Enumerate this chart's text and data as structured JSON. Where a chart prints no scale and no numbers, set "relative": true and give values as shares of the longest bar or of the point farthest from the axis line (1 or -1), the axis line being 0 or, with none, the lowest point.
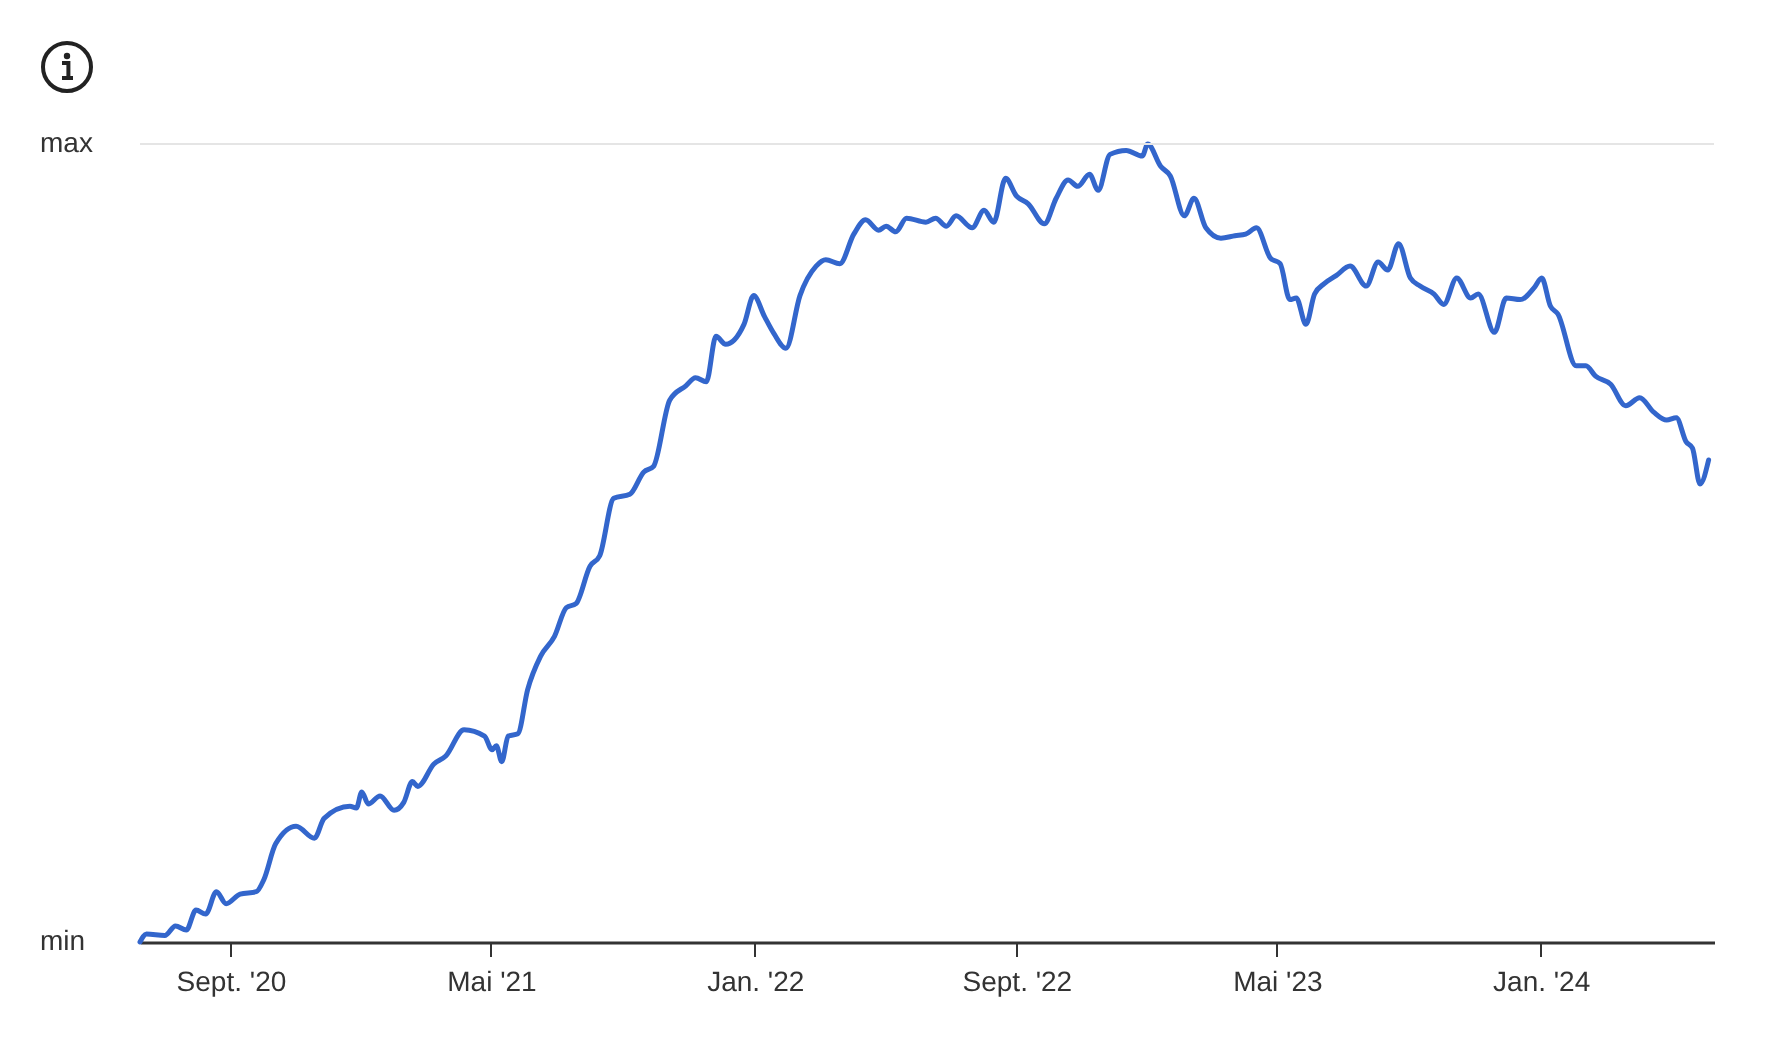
{
  "chart_data": {
    "type": "line",
    "relative": true,
    "ref_lines": [
      {
        "axis": "y",
        "value": 1,
        "color": "#e5e5e5"
      }
    ],
    "xlim": [
      "2020-06-09",
      "2024-06-10"
    ],
    "xticks": [
      {
        "value": "2020-09-01",
        "label": "Sept. '20"
      },
      {
        "value": "2021-05-01",
        "label": "Mai '21"
      },
      {
        "value": "2022-01-01",
        "label": "Jan. '22"
      },
      {
        "value": "2022-09-01",
        "label": "Sept. '22"
      },
      {
        "value": "2023-05-01",
        "label": "Mai '23"
      },
      {
        "value": "2024-01-01",
        "label": "Jan. '24"
      }
    ],
    "annotations": [
      "max",
      "min"
    ],
    "x": [
      "2020-06-09",
      "2020-06-15",
      "2020-07-02",
      "2020-07-12",
      "2020-07-22",
      "2020-07-31",
      "2020-08-09",
      "2020-08-19",
      "2020-08-28",
      "2020-09-10",
      "2020-09-25",
      "2020-10-02",
      "2020-10-13",
      "2020-11-01",
      "2020-11-18",
      "2020-11-27",
      "2020-12-21",
      "2020-12-27",
      "2021-01-01",
      "2021-01-07",
      "2021-01-18",
      "2021-01-31",
      "2021-02-09",
      "2021-02-17",
      "2021-02-22",
      "2021-03-09",
      "2021-03-20",
      "2021-04-06",
      "2021-04-25",
      "2021-05-02",
      "2021-05-06",
      "2021-05-11",
      "2021-05-17",
      "2021-05-26",
      "2021-06-04",
      "2021-06-16",
      "2021-06-29",
      "2021-07-10",
      "2021-07-19",
      "2021-08-01",
      "2021-08-10",
      "2021-08-23",
      "2021-09-07",
      "2021-09-20",
      "2021-09-29",
      "2021-10-14",
      "2021-10-29",
      "2021-11-07",
      "2021-11-17",
      "2021-11-26",
      "2021-12-05",
      "2021-12-22",
      "2021-12-31",
      "2022-01-10",
      "2022-01-19",
      "2022-01-30",
      "2022-02-12",
      "2022-02-27",
      "2022-03-08",
      "2022-03-21",
      "2022-04-03",
      "2022-04-14",
      "2022-04-26",
      "2022-05-03",
      "2022-05-12",
      "2022-05-22",
      "2022-06-09",
      "2022-06-18",
      "2022-06-28",
      "2022-07-07",
      "2022-07-22",
      "2022-08-02",
      "2022-08-11",
      "2022-08-22",
      "2022-09-01",
      "2022-09-12",
      "2022-09-27",
      "2022-10-08",
      "2022-10-19",
      "2022-10-28",
      "2022-11-08",
      "2022-11-16",
      "2022-11-27",
      "2022-12-12",
      "2022-12-27",
      "2023-01-01",
      "2023-01-13",
      "2023-01-22",
      "2023-02-04",
      "2023-02-13",
      "2023-02-24",
      "2023-03-10",
      "2023-03-23",
      "2023-04-02",
      "2023-04-12",
      "2023-04-25",
      "2023-05-04",
      "2023-05-13",
      "2023-05-19",
      "2023-05-28",
      "2023-06-05",
      "2023-06-14",
      "2023-06-25",
      "2023-07-08",
      "2023-07-23",
      "2023-08-03",
      "2023-08-12",
      "2023-08-22",
      "2023-09-02",
      "2023-09-11",
      "2023-09-24",
      "2023-10-03",
      "2023-10-15",
      "2023-10-28",
      "2023-11-04",
      "2023-11-19",
      "2023-11-30",
      "2023-12-13",
      "2023-12-26",
      "2024-01-02",
      "2024-01-10",
      "2024-01-17",
      "2024-02-03",
      "2024-02-12",
      "2024-02-21",
      "2024-03-06",
      "2024-03-20",
      "2024-04-02",
      "2024-04-15",
      "2024-04-27",
      "2024-05-06",
      "2024-05-15",
      "2024-05-21",
      "2024-05-28",
      "2024-06-05"
    ],
    "series": [
      {
        "color": "#3366cc",
        "values": [
          0,
          0.01,
          0.008,
          0.02,
          0.015,
          0.04,
          0.035,
          0.063,
          0.048,
          0.06,
          0.063,
          0.078,
          0.123,
          0.145,
          0.13,
          0.155,
          0.17,
          0.168,
          0.188,
          0.173,
          0.183,
          0.165,
          0.175,
          0.201,
          0.195,
          0.223,
          0.233,
          0.266,
          0.258,
          0.241,
          0.246,
          0.226,
          0.258,
          0.261,
          0.316,
          0.358,
          0.383,
          0.419,
          0.424,
          0.471,
          0.484,
          0.556,
          0.561,
          0.589,
          0.596,
          0.679,
          0.697,
          0.707,
          0.702,
          0.759,
          0.749,
          0.774,
          0.81,
          0.784,
          0.762,
          0.744,
          0.81,
          0.847,
          0.855,
          0.85,
          0.887,
          0.905,
          0.892,
          0.897,
          0.89,
          0.907,
          0.902,
          0.907,
          0.897,
          0.91,
          0.895,
          0.917,
          0.902,
          0.957,
          0.935,
          0.925,
          0.9,
          0.932,
          0.955,
          0.947,
          0.962,
          0.942,
          0.987,
          0.992,
          0.985,
          1,
          0.972,
          0.96,
          0.91,
          0.932,
          0.895,
          0.882,
          0.885,
          0.887,
          0.895,
          0.857,
          0.85,
          0.805,
          0.807,
          0.774,
          0.812,
          0.825,
          0.835,
          0.847,
          0.822,
          0.852,
          0.842,
          0.875,
          0.832,
          0.822,
          0.812,
          0.799,
          0.832,
          0.807,
          0.812,
          0.764,
          0.807,
          0.805,
          0.82,
          0.832,
          0.797,
          0.787,
          0.722,
          0.722,
          0.709,
          0.699,
          0.672,
          0.682,
          0.664,
          0.654,
          0.657,
          0.627,
          0.619,
          0.574,
          0.604
        ]
      }
    ]
  }
}
